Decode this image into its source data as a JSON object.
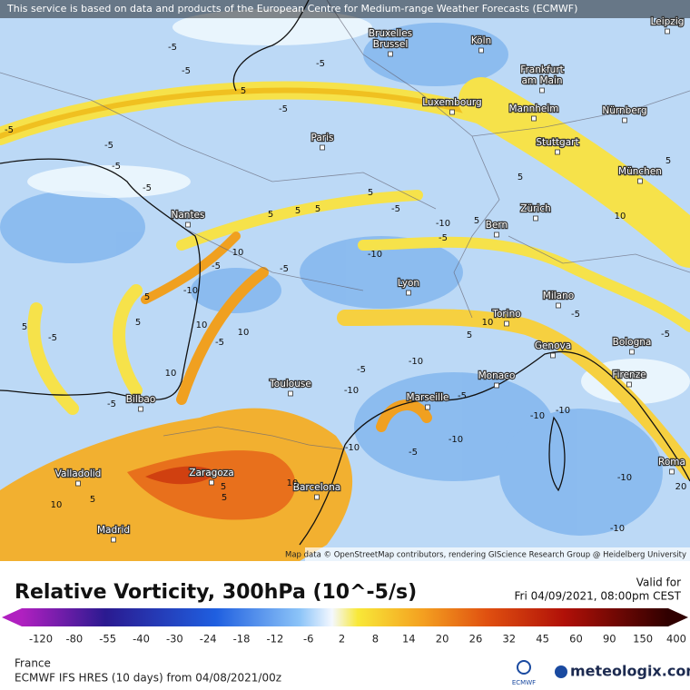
{
  "header": {
    "notice": "This service is based on data and products of the European Centre for Medium-range Weather Forecasts (ECMWF)"
  },
  "map": {
    "cities": [
      [
        "Bruxelles",
        "Brussel"
      ],
      [
        "Köln"
      ],
      [
        "Leipzig"
      ],
      [
        "Frankfurt",
        "am Main"
      ],
      [
        "Luxembourg"
      ],
      [
        "Mannheim"
      ],
      [
        "Nürnberg"
      ],
      [
        "Paris"
      ],
      [
        "Stuttgart"
      ],
      [
        "München"
      ],
      [
        "Nantes"
      ],
      [
        "Zürich"
      ],
      [
        "Bern"
      ],
      [
        "Lyon"
      ],
      [
        "Milano"
      ],
      [
        "Torino"
      ],
      [
        "Bologna"
      ],
      [
        "Genova"
      ],
      [
        "Firenze"
      ],
      [
        "Toulouse"
      ],
      [
        "Monaco"
      ],
      [
        "Bilbao"
      ],
      [
        "Marseille"
      ],
      [
        "Roma"
      ],
      [
        "Valladolid"
      ],
      [
        "Zaragoza"
      ],
      [
        "Barcelona"
      ],
      [
        "Madrid"
      ]
    ],
    "contour_labels": [
      "-5",
      "-5",
      "-5",
      "5",
      "-5",
      "-5",
      "-5",
      "-5",
      "-5",
      "5",
      "5",
      "5",
      "5",
      "-5",
      "-10",
      "5",
      "-5",
      "10",
      "-5",
      "-10",
      "5",
      "-10",
      "-5",
      "5",
      "-5",
      "5",
      "10",
      "-5",
      "10",
      "10",
      "-5",
      "-10",
      "-10",
      "-5",
      "10",
      "5",
      "-10",
      "-10",
      "-5",
      "-10",
      "-10",
      "-5",
      "10",
      "5",
      "10",
      "5",
      "5",
      "-10",
      "-10",
      "20",
      "5",
      "10",
      "-5",
      "5",
      "-5"
    ],
    "attribution": "Map data © OpenStreetMap contributors, rendering GIScience Research Group @ Heidelberg University"
  },
  "legend": {
    "title": "Relative Vorticity, 300hPa (10^-5/s)",
    "valid_label": "Valid for",
    "valid_time": "Fri 04/09/2021, 08:00pm CEST",
    "ticks": [
      -120,
      -80,
      -55,
      -40,
      -30,
      -24,
      -18,
      -12,
      -6,
      2,
      8,
      14,
      20,
      26,
      32,
      45,
      60,
      90,
      150,
      400
    ]
  },
  "footer": {
    "region": "France",
    "model": "ECMWF IFS HRES (10 days) from 04/08/2021/00z",
    "ecmwf_logo": "ECMWF",
    "brand": "meteologix.com"
  }
}
